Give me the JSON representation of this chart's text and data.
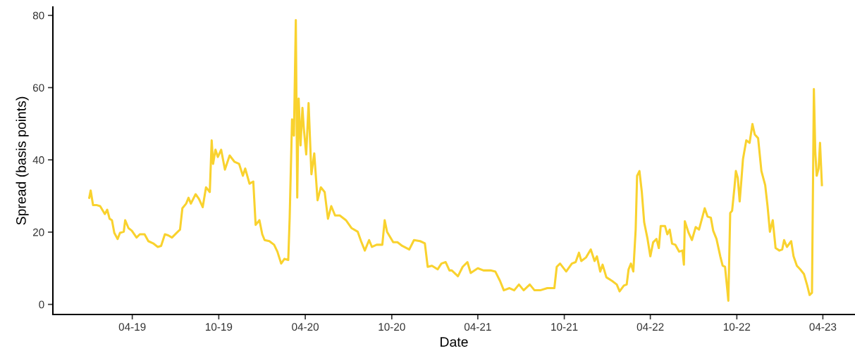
{
  "chart_data": {
    "type": "line",
    "xlabel": "Date",
    "ylabel": "Spread (basis points)",
    "x": [
      "2018-12-31",
      "2019-01-03",
      "2019-01-08",
      "2019-01-15",
      "2019-01-23",
      "2019-02-02",
      "2019-02-07",
      "2019-02-12",
      "2019-02-17",
      "2019-02-22",
      "2019-03-01",
      "2019-03-06",
      "2019-03-14",
      "2019-03-17",
      "2019-03-24",
      "2019-03-31",
      "2019-04-10",
      "2019-04-17",
      "2019-04-27",
      "2019-05-05",
      "2019-05-15",
      "2019-05-25",
      "2019-06-01",
      "2019-06-09",
      "2019-06-16",
      "2019-06-24",
      "2019-07-04",
      "2019-07-11",
      "2019-07-16",
      "2019-07-24",
      "2019-07-29",
      "2019-08-03",
      "2019-08-13",
      "2019-08-20",
      "2019-08-28",
      "2019-09-04",
      "2019-09-12",
      "2019-09-16",
      "2019-09-19",
      "2019-09-24",
      "2019-09-29",
      "2019-10-06",
      "2019-10-14",
      "2019-10-24",
      "2019-11-03",
      "2019-11-13",
      "2019-11-21",
      "2019-11-26",
      "2019-12-05",
      "2019-12-13",
      "2019-12-18",
      "2019-12-26",
      "2020-01-01",
      "2020-01-06",
      "2020-01-16",
      "2020-01-26",
      "2020-02-02",
      "2020-02-10",
      "2020-02-17",
      "2020-02-25",
      "2020-02-28",
      "2020-03-04",
      "2020-03-08",
      "2020-03-12",
      "2020-03-15",
      "2020-03-18",
      "2020-03-22",
      "2020-03-26",
      "2020-03-29",
      "2020-04-03",
      "2020-04-08",
      "2020-04-14",
      "2020-04-20",
      "2020-04-27",
      "2020-05-04",
      "2020-05-12",
      "2020-05-19",
      "2020-05-26",
      "2020-06-03",
      "2020-06-13",
      "2020-06-26",
      "2020-07-08",
      "2020-07-21",
      "2020-07-28",
      "2020-08-05",
      "2020-08-14",
      "2020-08-20",
      "2020-08-30",
      "2020-09-11",
      "2020-09-16",
      "2020-09-21",
      "2020-10-04",
      "2020-10-13",
      "2020-10-23",
      "2020-11-07",
      "2020-11-17",
      "2020-11-30",
      "2020-12-10",
      "2020-12-16",
      "2020-12-25",
      "2021-01-06",
      "2021-01-14",
      "2021-01-23",
      "2021-01-31",
      "2021-02-05",
      "2021-02-18",
      "2021-02-28",
      "2021-03-10",
      "2021-03-17",
      "2021-04-01",
      "2021-04-13",
      "2021-04-28",
      "2021-05-08",
      "2021-05-18",
      "2021-05-26",
      "2021-06-07",
      "2021-06-17",
      "2021-06-27",
      "2021-07-07",
      "2021-07-20",
      "2021-07-30",
      "2021-08-11",
      "2021-08-26",
      "2021-09-10",
      "2021-09-15",
      "2021-09-22",
      "2021-10-05",
      "2021-10-17",
      "2021-10-25",
      "2021-11-01",
      "2021-11-06",
      "2021-11-16",
      "2021-11-26",
      "2021-12-04",
      "2021-12-09",
      "2021-12-16",
      "2021-12-21",
      "2021-12-29",
      "2022-01-10",
      "2022-01-20",
      "2022-01-26",
      "2022-02-04",
      "2022-02-10",
      "2022-02-14",
      "2022-02-19",
      "2022-02-24",
      "2022-03-01",
      "2022-03-04",
      "2022-03-09",
      "2022-03-14",
      "2022-03-19",
      "2022-03-26",
      "2022-04-01",
      "2022-04-07",
      "2022-04-14",
      "2022-04-19",
      "2022-04-23",
      "2022-05-02",
      "2022-05-07",
      "2022-05-12",
      "2022-05-17",
      "2022-05-24",
      "2022-06-01",
      "2022-06-08",
      "2022-06-11",
      "2022-06-13",
      "2022-06-21",
      "2022-06-28",
      "2022-07-06",
      "2022-07-13",
      "2022-07-21",
      "2022-07-25",
      "2022-07-31",
      "2022-08-07",
      "2022-08-12",
      "2022-08-19",
      "2022-08-27",
      "2022-09-01",
      "2022-09-06",
      "2022-09-11",
      "2022-09-13",
      "2022-09-17",
      "2022-09-21",
      "2022-09-26",
      "2022-09-29",
      "2022-10-03",
      "2022-10-07",
      "2022-10-11",
      "2022-10-14",
      "2022-10-21",
      "2022-10-28",
      "2022-11-03",
      "2022-11-08",
      "2022-11-15",
      "2022-11-22",
      "2022-11-30",
      "2022-12-05",
      "2022-12-10",
      "2022-12-16",
      "2022-12-22",
      "2022-12-30",
      "2023-01-05",
      "2023-01-09",
      "2023-01-15",
      "2023-01-24",
      "2023-01-29",
      "2023-02-05",
      "2023-02-12",
      "2023-02-20",
      "2023-02-27",
      "2023-03-04",
      "2023-03-09",
      "2023-03-13",
      "2023-03-16",
      "2023-03-19",
      "2023-03-23",
      "2023-03-26",
      "2023-03-30"
    ],
    "series": [
      {
        "color": "#f9d22e",
        "values": [
          29.5,
          31.5,
          27.5,
          27.5,
          27.2,
          25,
          26.2,
          23.7,
          23.3,
          19.8,
          18.1,
          19.8,
          20.1,
          23.3,
          21.1,
          20.4,
          18.5,
          19.4,
          19.4,
          17.5,
          16.9,
          15.9,
          16.2,
          19.4,
          19.1,
          18.5,
          19.8,
          20.7,
          26.6,
          27.9,
          29.5,
          27.9,
          30.5,
          29.2,
          26.9,
          32.4,
          31.1,
          45.4,
          38.9,
          42.8,
          40.8,
          42.8,
          37.3,
          41.2,
          39.5,
          38.9,
          35.6,
          37.6,
          33.4,
          34,
          22,
          23.3,
          19.4,
          17.8,
          17.5,
          16.5,
          14.6,
          11.3,
          12.6,
          12.3,
          24,
          51.2,
          46.7,
          78.7,
          29.6,
          57,
          44,
          54.4,
          48.6,
          41.5,
          55.7,
          36,
          41.8,
          28.8,
          32.4,
          31.1,
          23.7,
          27.2,
          24.6,
          24.6,
          23.3,
          21.1,
          20.1,
          17.5,
          14.9,
          17.8,
          15.9,
          16.5,
          16.5,
          23.3,
          20.1,
          17.2,
          17.2,
          16.2,
          15.2,
          17.8,
          17.5,
          16.9,
          10.4,
          10.7,
          9.7,
          11.3,
          11.7,
          9.4,
          9.4,
          7.8,
          10.4,
          11.7,
          8.7,
          10,
          9.4,
          9.4,
          9.1,
          6.5,
          3.9,
          4.5,
          3.9,
          5.5,
          3.9,
          5.5,
          3.9,
          3.9,
          4.5,
          4.5,
          10.4,
          11.3,
          9.1,
          11.3,
          11.7,
          14.3,
          12,
          13,
          15.2,
          12,
          13.3,
          9.1,
          11,
          7.5,
          6.5,
          5.5,
          3.6,
          5.2,
          5.5,
          9.7,
          11.3,
          9.1,
          20.7,
          35.6,
          36.9,
          31.1,
          22.7,
          18.2,
          13.3,
          17.2,
          18.1,
          15.6,
          21.7,
          21.7,
          19.4,
          20.7,
          16.8,
          16.5,
          14.6,
          14.9,
          11,
          23,
          19.8,
          17.8,
          21.4,
          20.7,
          24.6,
          26.6,
          24.3,
          24,
          20.4,
          18.1,
          13.3,
          10.7,
          10.4,
          3.9,
          1,
          25.3,
          25.9,
          32.4,
          36.9,
          35,
          28.5,
          35,
          40.2,
          45.4,
          44.7,
          49.9,
          47,
          46,
          36.9,
          33,
          27.2,
          20.1,
          23.3,
          15.6,
          14.9,
          15.2,
          17.8,
          15.9,
          17.5,
          13.3,
          10.7,
          9.7,
          8.4,
          5.2,
          2.6,
          3.2,
          59.6,
          42.1,
          35.6,
          37.6,
          44.7,
          33
        ]
      }
    ],
    "xlim": [
      "2018-10-15",
      "2023-06-08"
    ],
    "xticks": [
      {
        "value": "2019-04-01",
        "label": "04-19"
      },
      {
        "value": "2019-10-01",
        "label": "10-19"
      },
      {
        "value": "2020-04-01",
        "label": "04-20"
      },
      {
        "value": "2020-10-01",
        "label": "10-20"
      },
      {
        "value": "2021-04-01",
        "label": "04-21"
      },
      {
        "value": "2021-10-01",
        "label": "10-21"
      },
      {
        "value": "2022-04-01",
        "label": "04-22"
      },
      {
        "value": "2022-10-01",
        "label": "10-22"
      },
      {
        "value": "2023-04-01",
        "label": "04-23"
      }
    ],
    "ylim": [
      -2.8,
      82.3
    ],
    "yticks": [
      0,
      20,
      40,
      60,
      80
    ],
    "grid": false,
    "line_style": "solid",
    "marker": "none"
  }
}
